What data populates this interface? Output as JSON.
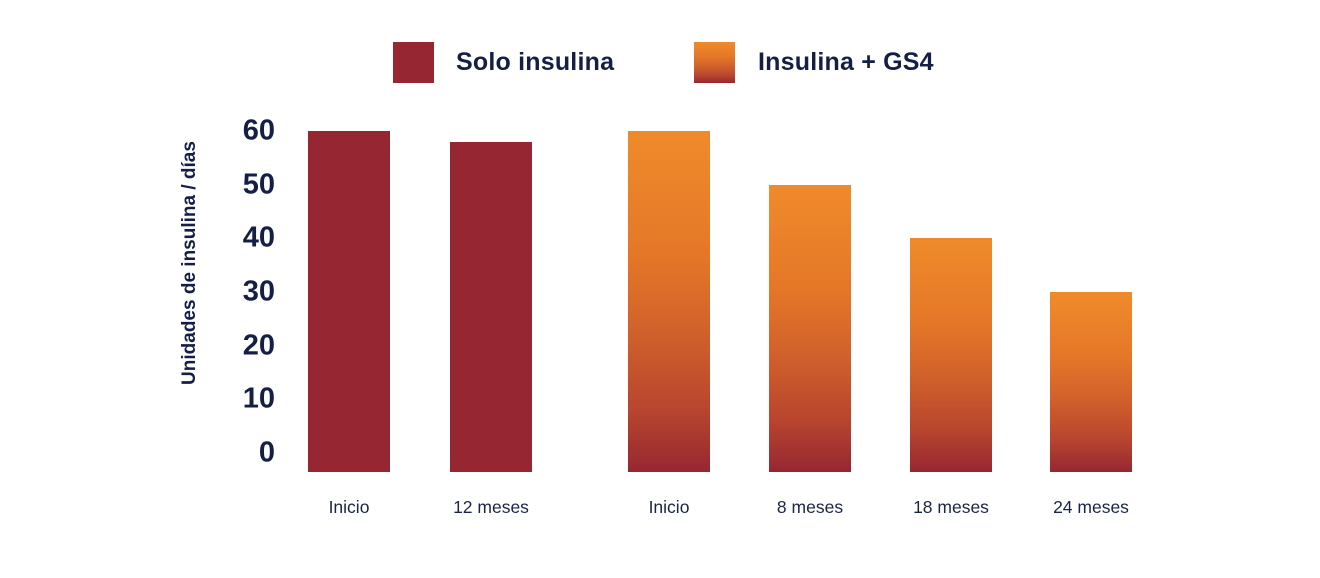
{
  "chart_data": {
    "type": "bar",
    "title": "",
    "xlabel": "",
    "ylabel": "Unidades de insulina / días",
    "ylim": [
      0,
      60
    ],
    "y_ticks": [
      60,
      50,
      40,
      30,
      20,
      10,
      0
    ],
    "grid": false,
    "legend_position": "top",
    "series": [
      {
        "name": "Solo insulina",
        "color": "#962732",
        "categories": [
          "Inicio",
          "12 meses"
        ],
        "values": [
          60,
          58
        ]
      },
      {
        "name": "Insulina + GS4",
        "color": "#EF8B2B",
        "gradient": [
          "#EF8B2B",
          "#D2622B",
          "#962732"
        ],
        "categories": [
          "Inicio",
          "8 meses",
          "18 meses",
          "24 meses"
        ],
        "values": [
          60,
          50,
          40,
          30
        ]
      }
    ]
  },
  "colors": {
    "text": "#151F46",
    "bar_red": "#962732",
    "bar_orange_top": "#EF8B2B",
    "bar_orange_bottom": "#962732",
    "background": "#FFFFFF"
  }
}
